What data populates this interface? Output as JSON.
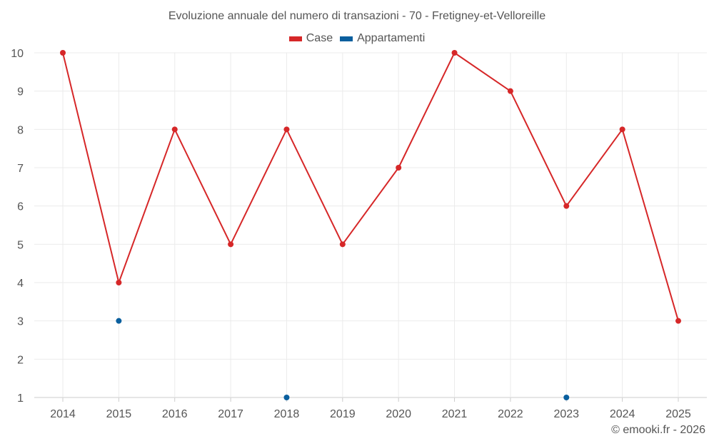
{
  "chart_data": {
    "type": "line",
    "title": "Evoluzione annuale del numero di transazioni - 70 - Fretigney-et-Velloreille",
    "categories": [
      "2014",
      "2015",
      "2016",
      "2017",
      "2018",
      "2019",
      "2020",
      "2021",
      "2022",
      "2023",
      "2024",
      "2025"
    ],
    "ylim": [
      1,
      10
    ],
    "yticks": [
      1,
      2,
      3,
      4,
      5,
      6,
      7,
      8,
      9,
      10
    ],
    "grid": true,
    "legend_position": "top-center",
    "series": [
      {
        "name": "Case",
        "color": "#d62728",
        "line": true,
        "values": [
          10,
          4,
          8,
          5,
          8,
          5,
          7,
          10,
          9,
          6,
          8,
          3
        ]
      },
      {
        "name": "Appartamenti",
        "color": "#0a5f9e",
        "line": false,
        "values": [
          null,
          3,
          null,
          null,
          1,
          null,
          null,
          null,
          null,
          1,
          null,
          null
        ]
      }
    ],
    "xlabel": "",
    "ylabel": ""
  },
  "credit": "© emooki.fr - 2026"
}
